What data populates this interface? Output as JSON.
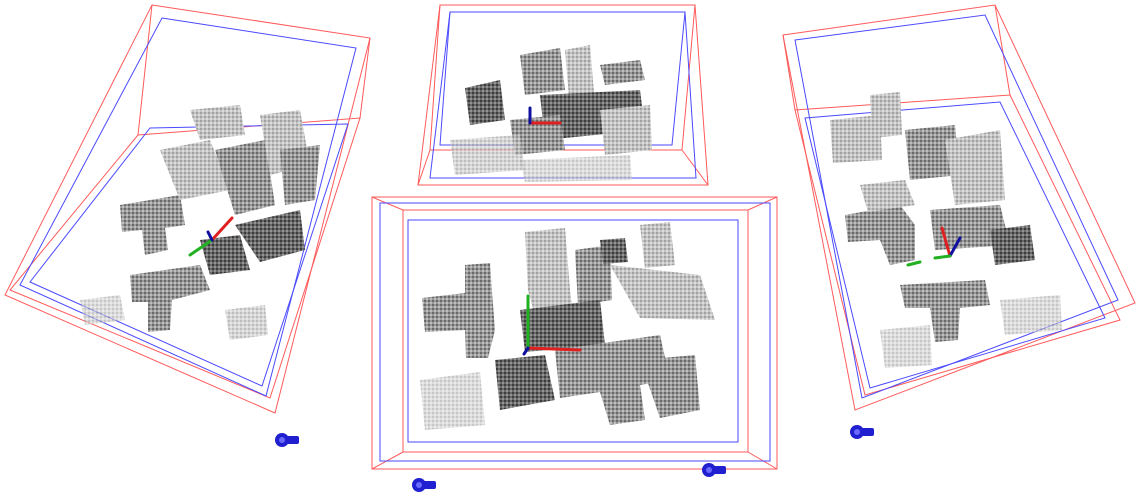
{
  "scene": {
    "background": "#ffffff",
    "colors": {
      "outer_box": "#ff5a5a",
      "inner_box": "#4a4aff",
      "part_dark": "#4a4a4a",
      "part_mid": "#8c8c8c",
      "part_light": "#cfcfcf",
      "axis_x": "#e02020",
      "axis_y": "#20b020",
      "axis_z": "#1010a0",
      "camera_marker": "#2020d0"
    },
    "views": [
      {
        "id": "left",
        "description_key": "view-left",
        "camera_markers": 1
      },
      {
        "id": "top-center",
        "description_key": "view-top-center",
        "camera_markers": 0
      },
      {
        "id": "bottom-center",
        "description_key": "view-bottom-center",
        "camera_markers": 2
      },
      {
        "id": "right",
        "description_key": "view-right",
        "camera_markers": 1
      }
    ]
  }
}
